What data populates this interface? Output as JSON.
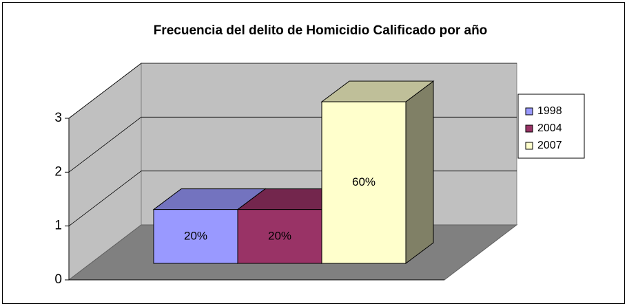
{
  "chart_data": {
    "type": "bar3d",
    "title": "Frecuencia del delito de Homicidio Calificado por año",
    "series": [
      {
        "name": "1998",
        "color": "#9999ff",
        "values": [
          1
        ]
      },
      {
        "name": "2004",
        "color": "#993366",
        "values": [
          1
        ]
      },
      {
        "name": "2007",
        "color": "#ffffcc",
        "values": [
          3
        ]
      }
    ],
    "data_labels": [
      "20%",
      "20%",
      "60%"
    ],
    "ylim": [
      0,
      3
    ],
    "yticks": [
      0,
      1,
      2,
      3
    ],
    "grid": true,
    "legend": "right"
  }
}
